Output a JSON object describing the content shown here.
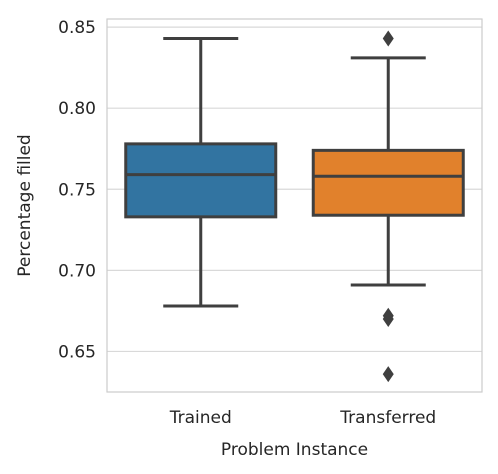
{
  "chart_data": {
    "type": "box",
    "xlabel": "Problem Instance",
    "ylabel": "Percentage filled",
    "ylim": [
      0.625,
      0.855
    ],
    "yticks": [
      0.65,
      0.7,
      0.75,
      0.8,
      0.85
    ],
    "ytick_labels": [
      "0.65",
      "0.70",
      "0.75",
      "0.80",
      "0.85"
    ],
    "grid": "horizontal",
    "categories": [
      "Trained",
      "Transferred"
    ],
    "boxes": [
      {
        "category": "Trained",
        "color": "#3274a1",
        "whisker_low": 0.678,
        "q1": 0.733,
        "median": 0.759,
        "q3": 0.778,
        "whisker_high": 0.843,
        "outliers": []
      },
      {
        "category": "Transferred",
        "color": "#e1812c",
        "whisker_low": 0.691,
        "q1": 0.734,
        "median": 0.758,
        "q3": 0.774,
        "whisker_high": 0.831,
        "outliers": [
          0.843,
          0.672,
          0.67,
          0.636
        ]
      }
    ]
  }
}
